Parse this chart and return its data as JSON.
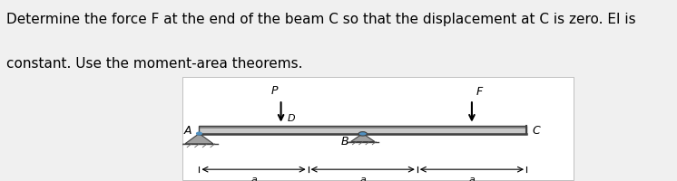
{
  "text_line1": "Determine the force F at the end of the beam C so that the displacement at C is zero. EI is",
  "text_line2": "constant. Use the moment-area theorems.",
  "text_fontsize": 11,
  "bg_color": "#f0f0f0",
  "diagram_bg": "#ffffff",
  "label_A": "A",
  "label_B": "B",
  "label_C": "C",
  "label_D": "D",
  "label_F": "F",
  "label_P": "P",
  "dim_a": "a"
}
